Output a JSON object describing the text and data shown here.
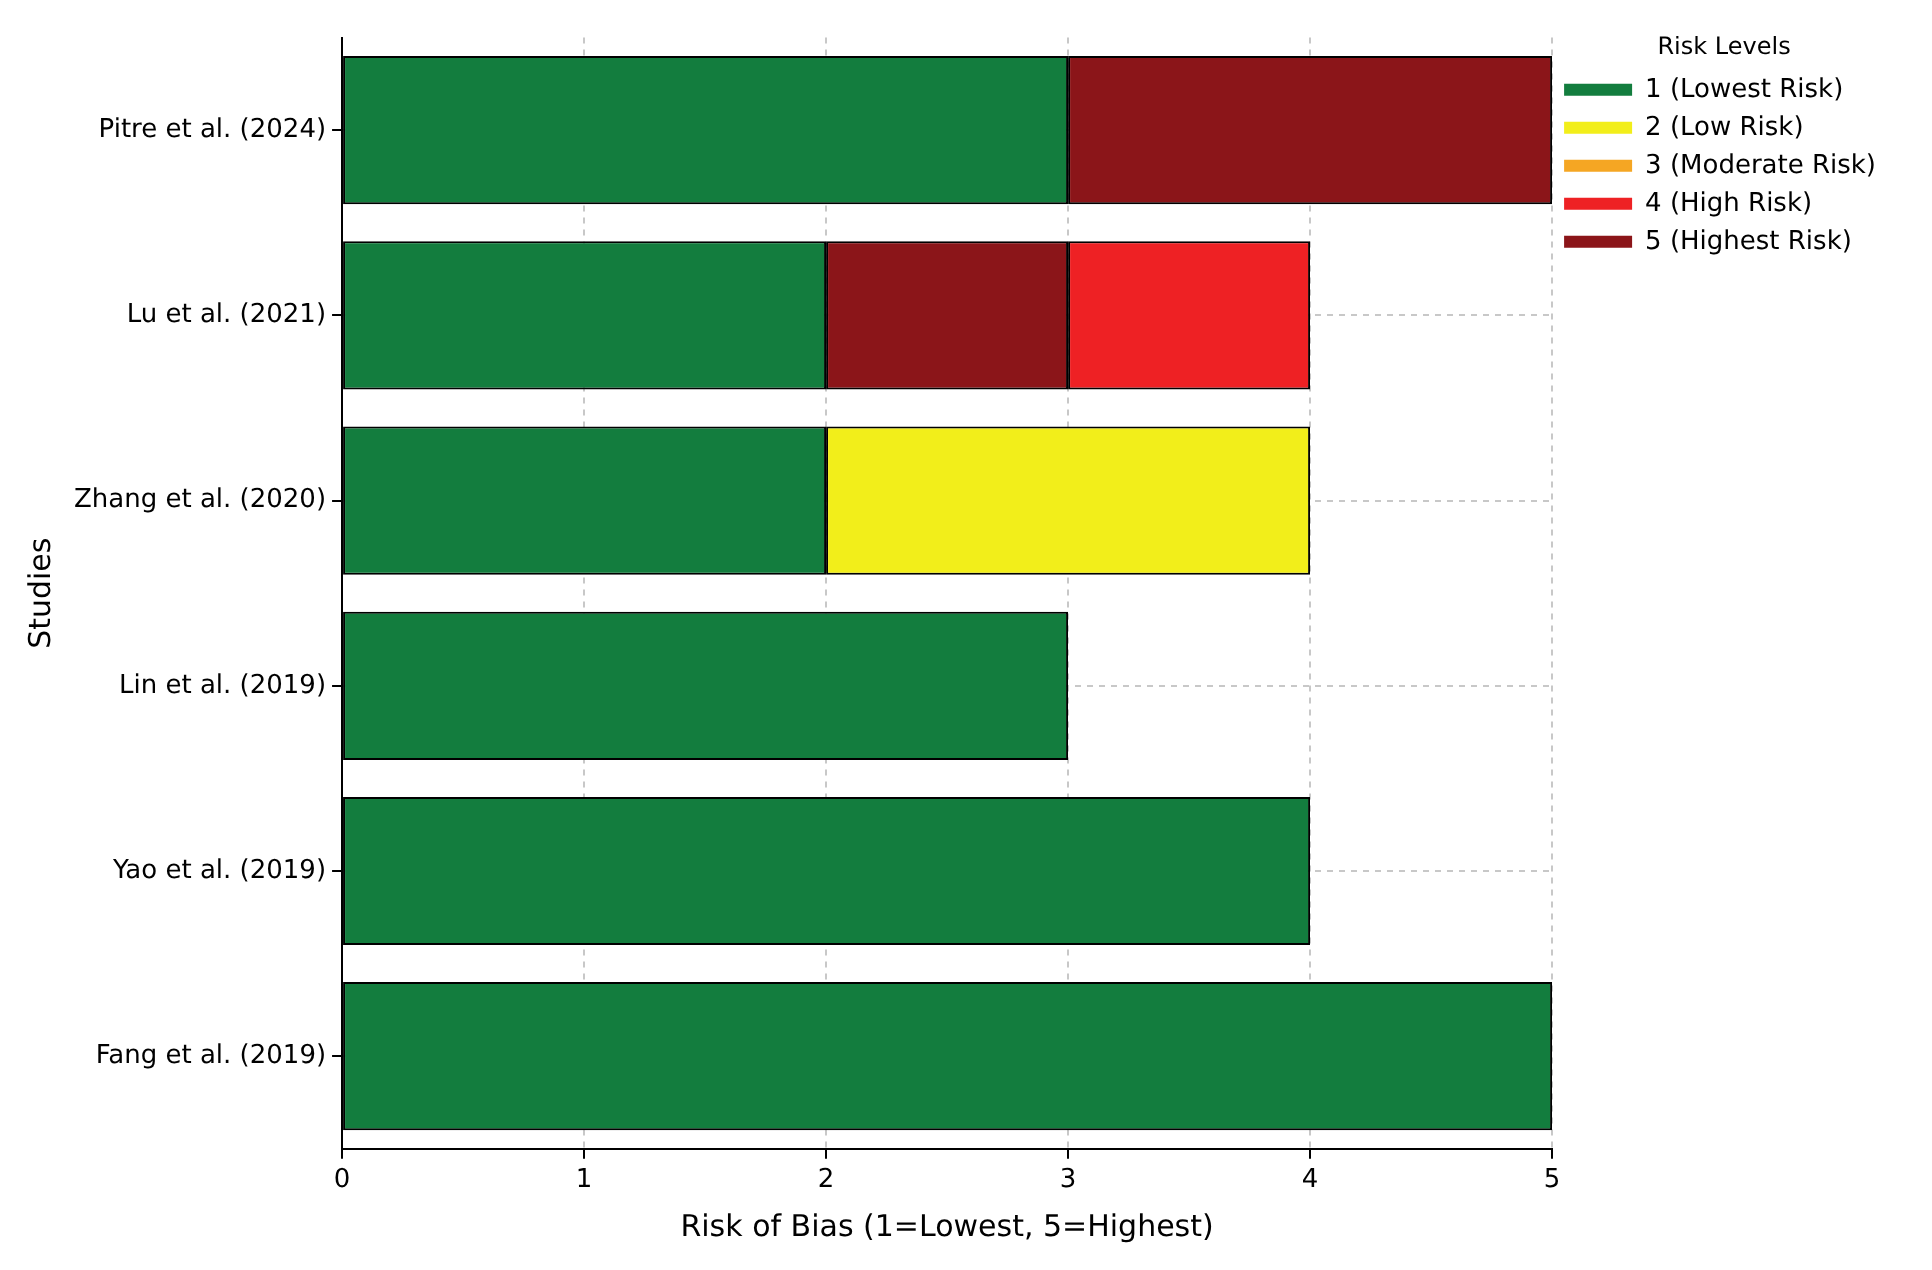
{
  "chart_data": {
    "type": "bar",
    "orientation": "horizontal",
    "xlabel": "Risk of Bias (1=Lowest, 5=Highest)",
    "ylabel": "Studies",
    "legend_title": "Risk Levels",
    "legend": "top right",
    "categories": [
      "Pitre et al. (2024)",
      "Lu et al. (2021)",
      "Zhang et al. (2020)",
      "Lin et al. (2019)",
      "Yao et al. (2019)",
      "Fang et al. (2019)"
    ],
    "series": [
      {
        "name": "1 (Lowest Risk)",
        "color": "#137d3e",
        "values": [
          3,
          2,
          2,
          3,
          4,
          5
        ],
        "base": [
          0,
          0,
          0,
          0,
          0,
          0
        ]
      },
      {
        "name": "2 (Low Risk)",
        "color": "#f2ee1a",
        "values": [
          null,
          null,
          2,
          null,
          null,
          null
        ],
        "base": [
          null,
          null,
          2,
          null,
          null,
          null
        ]
      },
      {
        "name": "3 (Moderate Risk)",
        "color": "#f5a623",
        "values": [
          null,
          null,
          null,
          null,
          null,
          null
        ],
        "base": [
          null,
          null,
          null,
          null,
          null,
          null
        ]
      },
      {
        "name": "4 (High Risk)",
        "color": "#ee2124",
        "values": [
          null,
          1,
          null,
          null,
          null,
          null
        ],
        "base": [
          null,
          3,
          null,
          null,
          null,
          null
        ]
      },
      {
        "name": "5 (Highest Risk)",
        "color": "#8b1519",
        "values": [
          2,
          1,
          null,
          null,
          null,
          null
        ],
        "base": [
          3,
          2,
          null,
          null,
          null,
          null
        ]
      }
    ],
    "xlim": [
      0,
      5
    ],
    "xticks": [
      0,
      1,
      2,
      3,
      4,
      5
    ],
    "grid": true
  }
}
